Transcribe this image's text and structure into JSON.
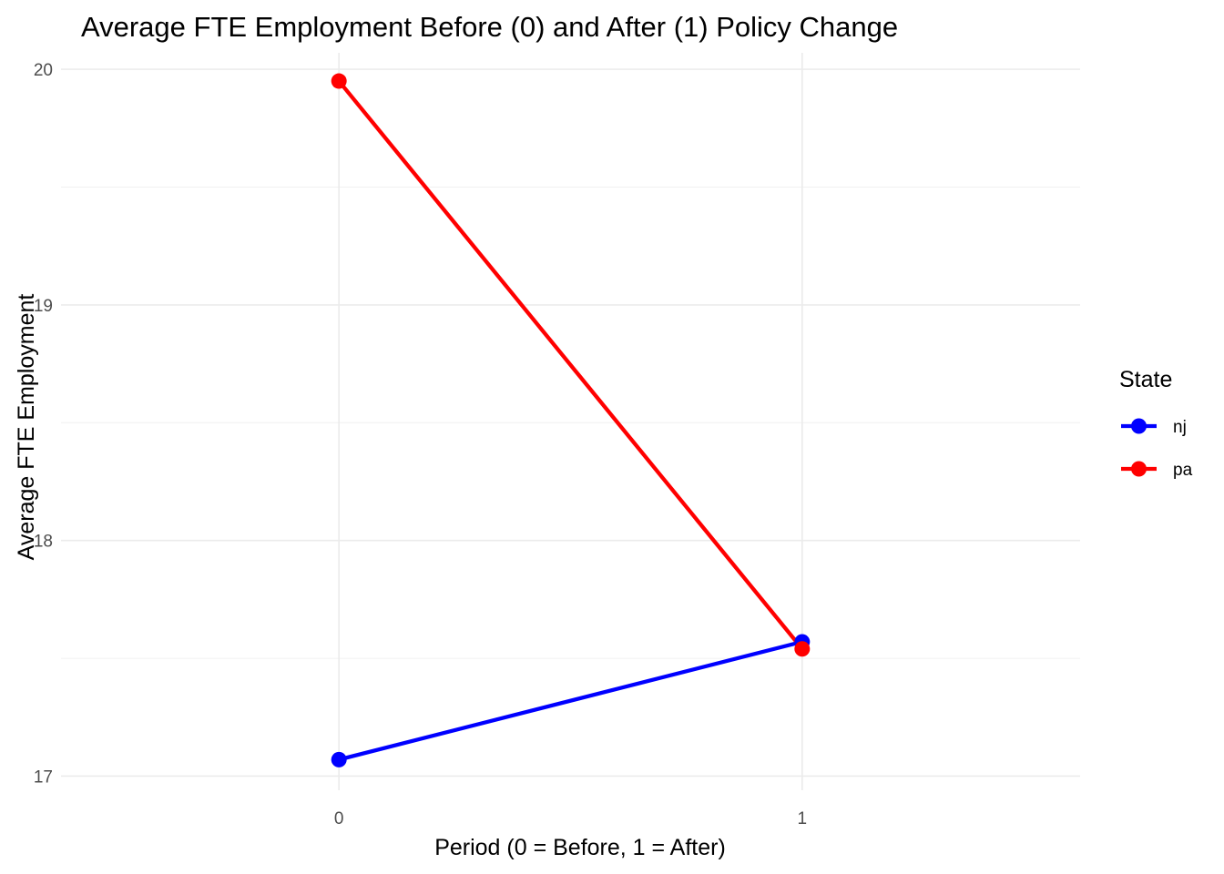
{
  "chart_data": {
    "type": "line",
    "title": "Average FTE Employment Before (0) and After (1) Policy Change",
    "xlabel": "Period (0 = Before, 1 = After)",
    "ylabel": "Average FTE Employment",
    "x": [
      0,
      1
    ],
    "x_ticks": [
      "0",
      "1"
    ],
    "y_ticks": [
      "17",
      "18",
      "19",
      "20"
    ],
    "xlim": [
      -0.6,
      1.6
    ],
    "ylim": [
      16.94,
      20.07
    ],
    "grid": true,
    "legend": {
      "title": "State",
      "position": "right"
    },
    "series": [
      {
        "name": "nj",
        "color": "#0000FF",
        "values": [
          17.07,
          17.57
        ]
      },
      {
        "name": "pa",
        "color": "#FF0000",
        "values": [
          19.95,
          17.54
        ]
      }
    ]
  }
}
